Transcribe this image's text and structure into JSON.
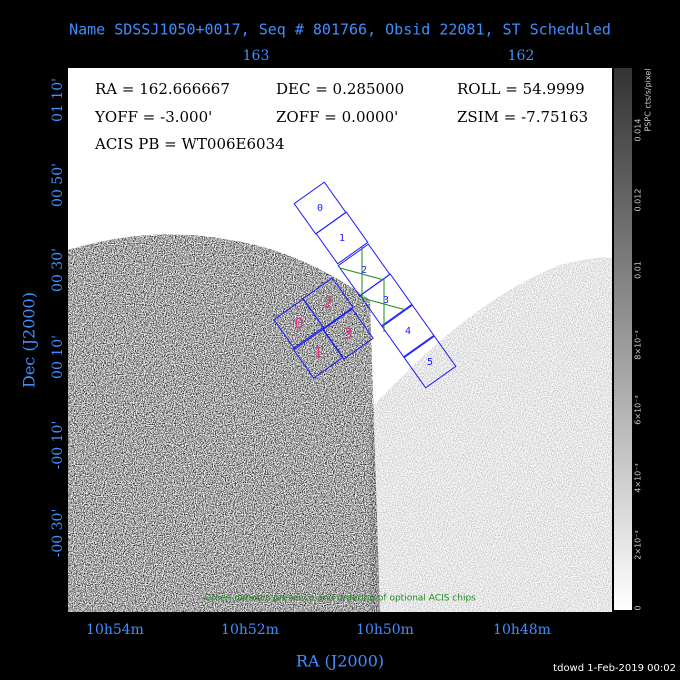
{
  "header": {
    "title": "Name SDSSJ1050+0017, Seq # 801766, Obsid 22081, ST Scheduled"
  },
  "info": [
    "RA = 162.666667",
    "DEC = 0.285000",
    "ROLL = 54.9999",
    "YOFF = -3.000'",
    "ZOFF = 0.0000'",
    "ZSIM = -7.75163",
    "ACIS PB = WT006E6034"
  ],
  "axes": {
    "x_label": "RA (J2000)",
    "y_label": "Dec (J2000)",
    "top_ticks": [
      "163",
      "162"
    ],
    "bottom_ticks": [
      "10h54m",
      "10h52m",
      "10h50m",
      "10h48m"
    ],
    "left_ticks": [
      "01 10'",
      "00 50'",
      "00 30'",
      "00 10'",
      "-00 10'",
      "-00 30'"
    ]
  },
  "colorbar": {
    "label": "PSPC cts/s/pixel",
    "ticks": [
      "0.014",
      "0.012",
      "0.01",
      "8×10⁻³",
      "6×10⁻³",
      "4×10⁻³",
      "2×10⁻³",
      "0"
    ]
  },
  "acis_s_chips": [
    "0",
    "1",
    "2",
    "3",
    "4",
    "5"
  ],
  "acis_i_chips": [
    "0",
    "1",
    "2",
    "3"
  ],
  "note": "Green denotes presence and ordering of optional ACIS chips",
  "footer": "tdowd  1-Feb-2019 00:02"
}
